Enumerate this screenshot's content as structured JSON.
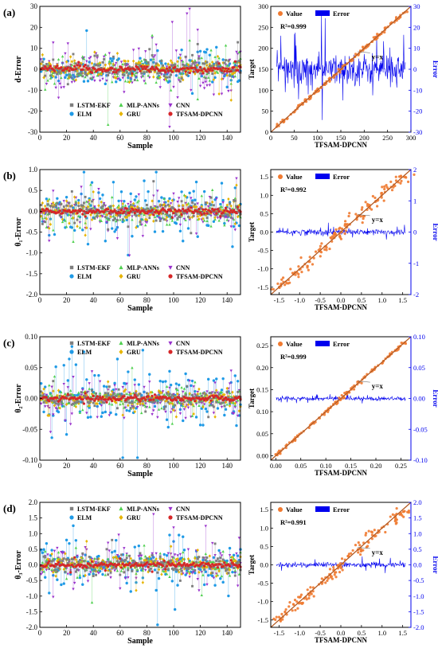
{
  "figure": {
    "colors": {
      "LSTM-EKF": "#7f7f7f",
      "ELM": "#1f9ae6",
      "MLP-ANNs": "#4fd04f",
      "GRU": "#e6b400",
      "CNN": "#9932cc",
      "TFSAM-DPCNN": "#d62728",
      "value": "#f07a30",
      "error": "#0000ee",
      "fitline": "#333333"
    }
  },
  "chart_data": [
    {
      "panel": "(a)",
      "type": "scatter",
      "xlabel": "Sample",
      "ylabel": "d-Error",
      "xlim": [
        0,
        150
      ],
      "ylim": [
        -30,
        30
      ],
      "xticks": [
        "0",
        "20",
        "40",
        "60",
        "80",
        "100",
        "120",
        "140"
      ],
      "yticks": [
        "30",
        "20",
        "10",
        "0",
        "-10",
        "-20",
        "-30"
      ],
      "legend": [
        "LSTM-EKF",
        "MLP-ANNs",
        "CNN",
        "ELM",
        "GRU",
        "TFSAM-DPCNN"
      ],
      "legend_position": "bottom-left",
      "spread": {
        "LSTM-EKF": 2.5,
        "ELM": 3.5,
        "MLP-ANNs": 3,
        "GRU": 2.5,
        "CNN": 5,
        "TFSAM-DPCNN": 0.8
      },
      "n_samples": 150
    },
    {
      "panel": "(a)",
      "type": "scatter",
      "xlabel": "TFSAM-DPCNN",
      "ylabel": "Target",
      "y2label": "Error",
      "xlim": [
        0,
        300
      ],
      "ylim": [
        0,
        300
      ],
      "y2lim": [
        -30,
        30
      ],
      "xticks": [
        "0",
        "50",
        "100",
        "150",
        "200",
        "250",
        "300"
      ],
      "yticks": [
        "0",
        "50",
        "100",
        "150",
        "200",
        "250",
        "300"
      ],
      "y2ticks": [
        "30",
        "20",
        "10",
        "0",
        "-10",
        "-20",
        "-30"
      ],
      "legend": [
        "Value",
        "Error"
      ],
      "legend_position": "top-left",
      "r2": "R²=0.999",
      "annotation": "y=x",
      "error_amplitude": 4.5
    },
    {
      "panel": "(b)",
      "type": "scatter",
      "xlabel": "Sample",
      "ylabel": "θ₁-Error",
      "xlim": [
        0,
        150
      ],
      "ylim": [
        -2.0,
        1.0
      ],
      "xticks": [
        "0",
        "20",
        "40",
        "60",
        "80",
        "100",
        "120",
        "140"
      ],
      "yticks": [
        "1.0",
        "0.5",
        "0.0",
        "-0.5",
        "-1.0",
        "-1.5",
        "-2.0"
      ],
      "legend": [
        "LSTM-EKF",
        "MLP-ANNs",
        "CNN",
        "ELM",
        "GRU",
        "TFSAM-DPCNN"
      ],
      "legend_position": "bottom-left",
      "spread": {
        "LSTM-EKF": 0.12,
        "ELM": 0.28,
        "MLP-ANNs": 0.15,
        "GRU": 0.13,
        "CNN": 0.18,
        "TFSAM-DPCNN": 0.03
      },
      "n_samples": 150
    },
    {
      "panel": "(b)",
      "type": "scatter",
      "xlabel": "TFSAM-DPCNN",
      "ylabel": "Target",
      "y2label": "Error",
      "xlim": [
        -1.7,
        1.7
      ],
      "ylim": [
        -1.7,
        1.7
      ],
      "y2lim": [
        -2,
        2
      ],
      "xticks": [
        "-1.5",
        "-1.0",
        "-0.5",
        "0.0",
        "0.5",
        "1.0",
        "1.5"
      ],
      "yticks": [
        "-1.5",
        "-1.0",
        "-0.5",
        "0.0",
        "0.5",
        "1.0",
        "1.5"
      ],
      "y2ticks": [
        "2",
        "1",
        "0",
        "-1",
        "-2"
      ],
      "legend": [
        "Value",
        "Error"
      ],
      "legend_position": "top-left",
      "r2": "R²=0.992",
      "annotation": "y=x",
      "error_amplitude": 0.06
    },
    {
      "panel": "(c)",
      "type": "scatter",
      "xlabel": "Sample",
      "ylabel": "θ₂-Error",
      "xlim": [
        0,
        150
      ],
      "ylim": [
        -0.1,
        0.1
      ],
      "xticks": [
        "0",
        "20",
        "40",
        "60",
        "80",
        "100",
        "120",
        "140"
      ],
      "yticks": [
        "0.10",
        "0.05",
        "0.00",
        "-0.05",
        "-0.10"
      ],
      "legend": [
        "LSTM-EKF",
        "MLP-ANNs",
        "CNN",
        "ELM",
        "GRU",
        "TFSAM-DPCNN"
      ],
      "legend_position": "top-left",
      "spread": {
        "LSTM-EKF": 0.006,
        "ELM": 0.022,
        "MLP-ANNs": 0.008,
        "GRU": 0.007,
        "CNN": 0.014,
        "TFSAM-DPCNN": 0.002
      },
      "n_samples": 150
    },
    {
      "panel": "(c)",
      "type": "scatter",
      "xlabel": "TFSAM-DPCNN",
      "ylabel": "Target",
      "y2label": "Error",
      "xlim": [
        -0.01,
        0.27
      ],
      "ylim": [
        -0.01,
        0.27
      ],
      "y2lim": [
        -0.1,
        0.1
      ],
      "xticks": [
        "0.00",
        "0.05",
        "0.10",
        "0.15",
        "0.20",
        "0.25"
      ],
      "yticks": [
        "0.00",
        "0.05",
        "0.10",
        "0.15",
        "0.20",
        "0.25"
      ],
      "y2ticks": [
        "0.10",
        "0.05",
        "0.00",
        "-0.05",
        "-0.10"
      ],
      "legend": [
        "Value",
        "Error"
      ],
      "legend_position": "top-left",
      "r2": "R²=0.999",
      "annotation": "y=x",
      "error_amplitude": 0.002
    },
    {
      "panel": "(d)",
      "type": "scatter",
      "xlabel": "Sample",
      "ylabel": "θ₃-Error",
      "xlim": [
        0,
        150
      ],
      "ylim": [
        -2.0,
        2.0
      ],
      "xticks": [
        "0",
        "20",
        "40",
        "60",
        "80",
        "100",
        "120",
        "140"
      ],
      "yticks": [
        "2.0",
        "1.5",
        "1.0",
        "0.5",
        "0.0",
        "-0.5",
        "-1.0",
        "-1.5",
        "-2.0"
      ],
      "legend": [
        "LSTM-EKF",
        "MLP-ANNs",
        "CNN",
        "ELM",
        "GRU",
        "TFSAM-DPCNN"
      ],
      "legend_position": "top-left",
      "spread": {
        "LSTM-EKF": 0.15,
        "ELM": 0.35,
        "MLP-ANNs": 0.18,
        "GRU": 0.15,
        "CNN": 0.25,
        "TFSAM-DPCNN": 0.04
      },
      "n_samples": 150
    },
    {
      "panel": "(d)",
      "type": "scatter",
      "xlabel": "TFSAM-DPCNN",
      "ylabel": "Target",
      "y2label": "Error",
      "xlim": [
        -1.7,
        1.7
      ],
      "ylim": [
        -1.7,
        1.7
      ],
      "y2lim": [
        -2.0,
        2.0
      ],
      "xticks": [
        "-1.5",
        "-1.0",
        "-0.5",
        "0.0",
        "0.5",
        "1.0",
        "1.5"
      ],
      "yticks": [
        "-1.5",
        "-1.0",
        "-0.5",
        "0.0",
        "0.5",
        "1.0",
        "1.5"
      ],
      "y2ticks": [
        "2.0",
        "1.5",
        "1.0",
        "0.5",
        "0.0",
        "-0.5",
        "-1.0",
        "-1.5",
        "-2.0"
      ],
      "legend": [
        "Value",
        "Error"
      ],
      "legend_position": "top-left",
      "r2": "R²=0.991",
      "annotation": "y=x",
      "error_amplitude": 0.05
    }
  ]
}
